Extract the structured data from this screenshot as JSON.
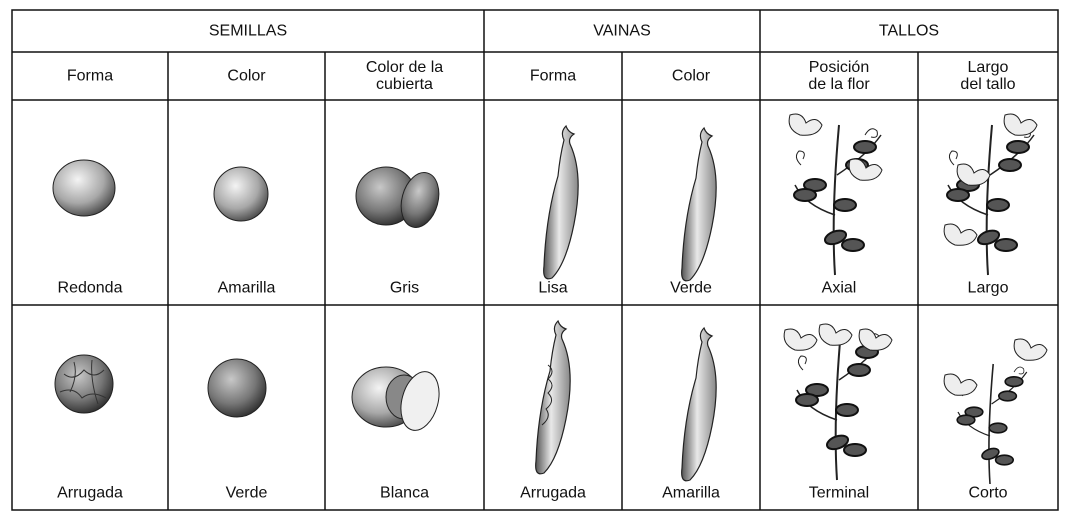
{
  "groups": [
    {
      "title": "SEMILLAS",
      "columns": [
        {
          "header": "Forma",
          "values": [
            "Redonda",
            "Arrugada"
          ]
        },
        {
          "header": "Color",
          "values": [
            "Amarilla",
            "Verde"
          ]
        },
        {
          "header": "Color de la\ncubierta",
          "values": [
            "Gris",
            "Blanca"
          ]
        }
      ]
    },
    {
      "title": "VAINAS",
      "columns": [
        {
          "header": "Forma",
          "values": [
            "Lisa",
            "Arrugada"
          ]
        },
        {
          "header": "Color",
          "values": [
            "Verde",
            "Amarilla"
          ]
        }
      ]
    },
    {
      "title": "TALLOS",
      "columns": [
        {
          "header": "Posición\nde la flor",
          "values": [
            "Axial",
            "Terminal"
          ]
        },
        {
          "header": "Largo\ndel tallo",
          "values": [
            "Largo",
            "Corto"
          ]
        }
      ]
    }
  ]
}
